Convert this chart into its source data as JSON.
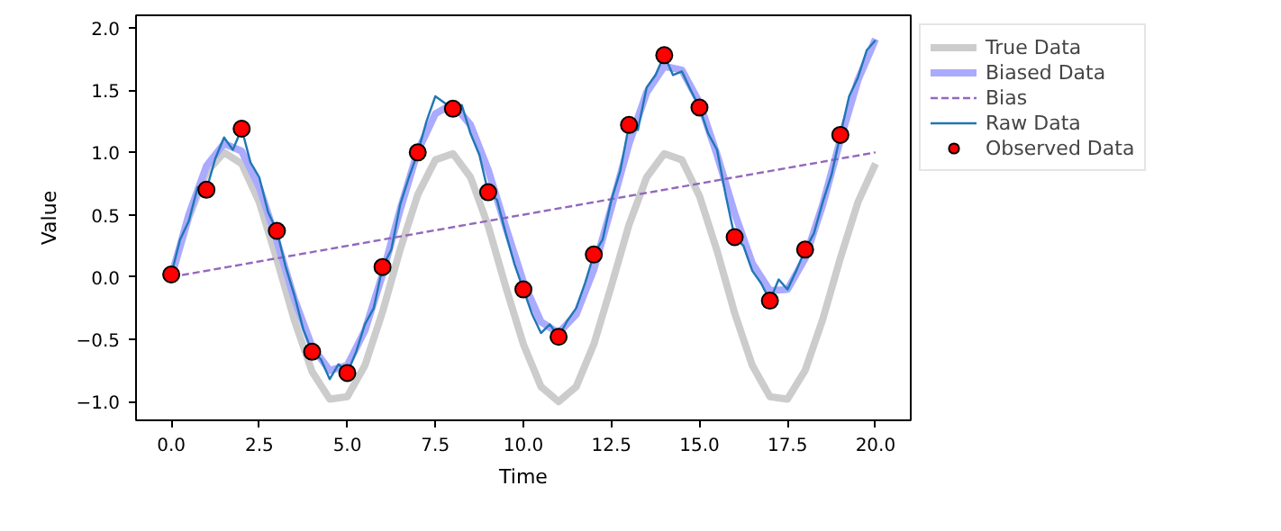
{
  "chart_data": {
    "type": "line",
    "xlabel": "Time",
    "ylabel": "Value",
    "xlim": [
      -1,
      21
    ],
    "ylim": [
      -1.15,
      2.1
    ],
    "xticks": [
      {
        "value": 0,
        "label": "0.0"
      },
      {
        "value": 2.5,
        "label": "2.5"
      },
      {
        "value": 5,
        "label": "5.0"
      },
      {
        "value": 7.5,
        "label": "7.5"
      },
      {
        "value": 10,
        "label": "10.0"
      },
      {
        "value": 12.5,
        "label": "12.5"
      },
      {
        "value": 15,
        "label": "15.0"
      },
      {
        "value": 17.5,
        "label": "17.5"
      },
      {
        "value": 20,
        "label": "20.0"
      }
    ],
    "yticks": [
      {
        "value": -1,
        "label": "−1.0"
      },
      {
        "value": -0.5,
        "label": "−0.5"
      },
      {
        "value": 0,
        "label": "0.0"
      },
      {
        "value": 0.5,
        "label": "0.5"
      },
      {
        "value": 1,
        "label": "1.0"
      },
      {
        "value": 1.5,
        "label": "1.5"
      },
      {
        "value": 2,
        "label": "2.0"
      }
    ],
    "grid": false,
    "legend": "top right",
    "series": [
      {
        "name": "True Data",
        "type": "line",
        "color": "#cccccc",
        "line_style": "solid",
        "x": [
          0,
          0.5,
          1,
          1.5,
          2,
          2.5,
          3,
          3.5,
          4,
          4.5,
          5,
          5.5,
          6,
          6.5,
          7,
          7.5,
          8,
          8.5,
          9,
          9.5,
          10,
          10.5,
          11,
          11.5,
          12,
          12.5,
          13,
          13.5,
          14,
          14.5,
          15,
          15.5,
          16,
          16.5,
          17,
          17.5,
          18,
          18.5,
          19,
          19.5,
          20
        ],
        "values": [
          0,
          0.48,
          0.84,
          1.0,
          0.91,
          0.6,
          0.14,
          -0.35,
          -0.76,
          -0.98,
          -0.96,
          -0.71,
          -0.28,
          0.22,
          0.66,
          0.94,
          0.99,
          0.8,
          0.41,
          -0.08,
          -0.54,
          -0.88,
          -1.0,
          -0.88,
          -0.54,
          -0.07,
          0.42,
          0.8,
          0.99,
          0.94,
          0.65,
          0.21,
          -0.29,
          -0.71,
          -0.96,
          -0.98,
          -0.75,
          -0.34,
          0.15,
          0.6,
          0.91
        ]
      },
      {
        "name": "Biased Data",
        "type": "line",
        "color": "#aaaaff",
        "line_style": "solid",
        "x": [
          0,
          0.5,
          1,
          1.5,
          2,
          2.5,
          3,
          3.5,
          4,
          4.5,
          5,
          5.5,
          6,
          6.5,
          7,
          7.5,
          8,
          8.5,
          9,
          9.5,
          10,
          10.5,
          11,
          11.5,
          12,
          12.5,
          13,
          13.5,
          14,
          14.5,
          15,
          15.5,
          16,
          16.5,
          17,
          17.5,
          18,
          18.5,
          19,
          19.5,
          20
        ],
        "values": [
          0,
          0.5,
          0.89,
          1.07,
          1.01,
          0.72,
          0.29,
          -0.18,
          -0.56,
          -0.75,
          -0.71,
          -0.43,
          0.02,
          0.54,
          1.01,
          1.31,
          1.39,
          1.22,
          0.86,
          0.4,
          -0.04,
          -0.36,
          -0.45,
          -0.3,
          0.06,
          0.56,
          1.07,
          1.48,
          1.69,
          1.66,
          1.4,
          0.98,
          0.51,
          0.11,
          -0.11,
          -0.1,
          0.15,
          0.58,
          1.1,
          1.58,
          1.91
        ]
      },
      {
        "name": "Bias",
        "type": "line",
        "color": "#9467bd",
        "line_style": "dashed",
        "x": [
          0,
          20
        ],
        "values": [
          0,
          1
        ]
      },
      {
        "name": "Raw Data",
        "type": "line",
        "color": "#1f77b4",
        "line_style": "solid",
        "x": [
          0,
          0.25,
          0.5,
          0.75,
          1,
          1.25,
          1.5,
          1.75,
          2,
          2.25,
          2.5,
          2.75,
          3,
          3.25,
          3.5,
          3.75,
          4,
          4.25,
          4.5,
          4.75,
          5,
          5.25,
          5.5,
          5.75,
          6,
          6.25,
          6.5,
          6.75,
          7,
          7.25,
          7.5,
          7.75,
          8,
          8.25,
          8.5,
          8.75,
          9,
          9.25,
          9.5,
          9.75,
          10,
          10.25,
          10.5,
          10.75,
          11,
          11.25,
          11.5,
          11.75,
          12,
          12.25,
          12.5,
          12.75,
          13,
          13.25,
          13.5,
          13.75,
          14,
          14.25,
          14.5,
          14.75,
          15,
          15.25,
          15.5,
          15.75,
          16,
          16.25,
          16.5,
          16.75,
          17,
          17.25,
          17.5,
          17.75,
          18,
          18.25,
          18.5,
          18.75,
          19,
          19.25,
          19.5,
          19.75,
          20
        ],
        "values": [
          0.02,
          0.3,
          0.45,
          0.72,
          0.7,
          0.95,
          1.12,
          1.02,
          1.19,
          0.92,
          0.8,
          0.52,
          0.37,
          0.08,
          -0.15,
          -0.42,
          -0.6,
          -0.66,
          -0.82,
          -0.7,
          -0.77,
          -0.6,
          -0.38,
          -0.25,
          0.08,
          0.22,
          0.58,
          0.8,
          1.0,
          1.25,
          1.45,
          1.4,
          1.35,
          1.38,
          1.15,
          0.98,
          0.68,
          0.62,
          0.35,
          0.1,
          -0.1,
          -0.3,
          -0.45,
          -0.38,
          -0.48,
          -0.35,
          -0.25,
          -0.05,
          0.18,
          0.3,
          0.62,
          0.85,
          1.22,
          1.18,
          1.52,
          1.62,
          1.78,
          1.62,
          1.65,
          1.5,
          1.36,
          1.15,
          1.02,
          0.65,
          0.32,
          0.25,
          0.05,
          -0.05,
          -0.19,
          -0.02,
          -0.1,
          0.05,
          0.22,
          0.35,
          0.6,
          0.82,
          1.14,
          1.45,
          1.6,
          1.82,
          1.9
        ]
      },
      {
        "name": "Observed Data",
        "type": "scatter",
        "color": "#ff0000",
        "marker": "circle",
        "x": [
          0,
          1,
          2,
          3,
          4,
          5,
          6,
          7,
          8,
          9,
          10,
          11,
          12,
          13,
          14,
          15,
          16,
          17,
          18,
          19
        ],
        "values": [
          0.02,
          0.7,
          1.19,
          0.37,
          -0.6,
          -0.77,
          0.08,
          1.0,
          1.35,
          0.68,
          -0.1,
          -0.48,
          0.18,
          1.22,
          1.78,
          1.36,
          0.32,
          -0.19,
          0.22,
          1.14
        ]
      }
    ]
  }
}
